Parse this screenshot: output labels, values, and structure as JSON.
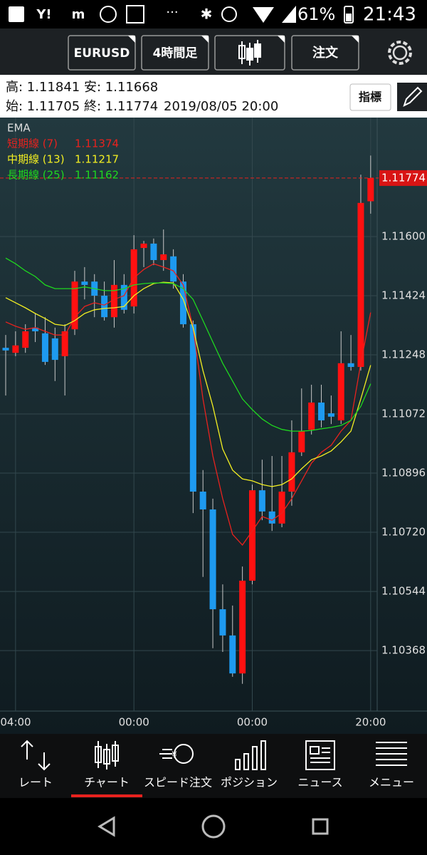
{
  "status_bar": {
    "battery": "61%",
    "time": "21:43"
  },
  "toolbar": {
    "symbol": "EURUSD",
    "timeframe": "4時間足",
    "order": "注文"
  },
  "info": {
    "line1": [
      "高: 1.11841",
      "安: 1.11668"
    ],
    "line2": [
      "始: 1.11705",
      "終: 1.11774",
      "2019/08/05 20:00"
    ],
    "indicator_button": "指標"
  },
  "chart_data": {
    "type": "candlestick",
    "legend_title": "EMA",
    "categories": [
      null,
      "04:00",
      null,
      null,
      null,
      null,
      null,
      null,
      null,
      null,
      null,
      null,
      null,
      "00:00",
      null,
      null,
      null,
      null,
      null,
      null,
      null,
      null,
      null,
      null,
      null,
      "00:00",
      null,
      null,
      null,
      null,
      null,
      null,
      null,
      null,
      null,
      null,
      null,
      "20:00"
    ],
    "open": [
      1.11269,
      1.11254,
      1.11269,
      1.11329,
      1.11312,
      1.11297,
      1.11244,
      1.11324,
      1.11466,
      1.11466,
      1.11424,
      1.1136,
      1.11456,
      1.11392,
      1.11566,
      1.11579,
      1.1153,
      1.11541,
      1.11466,
      1.11339,
      1.10841,
      1.10788,
      1.10491,
      1.10413,
      1.103,
      1.10576,
      1.10845,
      1.10782,
      1.10746,
      1.10841,
      1.10958,
      1.11025,
      1.11106,
      1.11074,
      1.11053,
      1.11223,
      1.11212,
      1.11705
    ],
    "high": [
      1.11307,
      1.11318,
      1.11339,
      1.11371,
      1.1136,
      1.11329,
      1.11339,
      1.11498,
      1.11509,
      1.11488,
      1.11466,
      1.1153,
      1.11488,
      1.11604,
      1.11587,
      1.11594,
      1.11621,
      1.11562,
      1.11488,
      1.1135,
      1.10905,
      1.1082,
      1.10565,
      1.10502,
      1.10618,
      1.10862,
      1.10936,
      1.10947,
      1.10947,
      1.11053,
      1.11148,
      1.11159,
      1.11159,
      1.11127,
      1.11318,
      1.11307,
      1.11784,
      1.11841
    ],
    "low": [
      1.11127,
      1.11244,
      1.11254,
      1.11286,
      1.11218,
      1.1117,
      1.11127,
      1.11307,
      1.11413,
      1.1136,
      1.1135,
      1.11329,
      1.11371,
      1.11371,
      1.11509,
      1.11515,
      1.11498,
      1.11445,
      1.11329,
      1.10777,
      1.10587,
      1.10375,
      1.10364,
      1.1029,
      1.10269,
      1.10565,
      1.10756,
      1.10724,
      1.10735,
      1.10799,
      1.10947,
      1.11011,
      1.11032,
      1.11042,
      1.11042,
      1.11201,
      1.11201,
      1.11668
    ],
    "close": [
      1.11261,
      1.11276,
      1.11318,
      1.11318,
      1.11227,
      1.11233,
      1.11318,
      1.11466,
      1.11456,
      1.11424,
      1.1136,
      1.11456,
      1.11382,
      1.11562,
      1.11579,
      1.1153,
      1.11547,
      1.11466,
      1.11339,
      1.10841,
      1.10788,
      1.10491,
      1.10413,
      1.103,
      1.10576,
      1.10845,
      1.10782,
      1.10746,
      1.10841,
      1.10958,
      1.11021,
      1.11106,
      1.11053,
      1.11064,
      1.11223,
      1.11212,
      1.117,
      1.11774
    ],
    "up_color": "#ff1111",
    "down_color": "#1e9af0",
    "series": [
      {
        "name": "短期線 (7)",
        "color": "#e8221e",
        "values": [
          1.11346,
          1.11333,
          1.11324,
          1.11329,
          1.11318,
          1.11307,
          1.11307,
          1.1136,
          1.11392,
          1.11403,
          1.11396,
          1.11413,
          1.11424,
          1.11477,
          1.11502,
          1.11519,
          1.11509,
          1.11498,
          1.11456,
          1.11329,
          1.11117,
          1.10947,
          1.1082,
          1.10714,
          1.10682,
          1.10724,
          1.10767,
          1.10756,
          1.10777,
          1.1082,
          1.10873,
          1.10926,
          1.10958,
          1.10979,
          1.11021,
          1.11053,
          1.11223,
          1.11374
        ]
      },
      {
        "name": "中期線 (13)",
        "color": "#f2ee22",
        "values": [
          1.11418,
          1.11403,
          1.11388,
          1.11371,
          1.11356,
          1.11339,
          1.11335,
          1.1135,
          1.11371,
          1.11382,
          1.11386,
          1.11388,
          1.11392,
          1.11424,
          1.11445,
          1.1146,
          1.11464,
          1.11462,
          1.11413,
          1.11329,
          1.11201,
          1.11095,
          1.10968,
          1.10905,
          1.10879,
          1.10873,
          1.10862,
          1.10856,
          1.10862,
          1.10879,
          1.10909,
          1.10936,
          1.10947,
          1.10962,
          1.10989,
          1.11021,
          1.11117,
          1.11217
        ]
      },
      {
        "name": "長期線 (25)",
        "color": "#1fd81f",
        "values": [
          1.11536,
          1.11519,
          1.11498,
          1.11481,
          1.11456,
          1.11445,
          1.11445,
          1.11445,
          1.1145,
          1.11445,
          1.11439,
          1.11439,
          1.11445,
          1.11456,
          1.1146,
          1.11462,
          1.11462,
          1.1146,
          1.11445,
          1.11413,
          1.1135,
          1.11286,
          1.11223,
          1.1117,
          1.11117,
          1.11085,
          1.11057,
          1.11038,
          1.11026,
          1.11021,
          1.11021,
          1.11023,
          1.11028,
          1.11032,
          1.11038,
          1.11053,
          1.11095,
          1.11162
        ]
      }
    ],
    "ylim": [
      1.10188,
      1.11954
    ],
    "yticks": [
      {
        "value": 1.116,
        "label": "1.11600"
      },
      1.11424,
      1.11248,
      1.11072,
      1.10896,
      {
        "value": 1.1072,
        "label": "1.10720"
      },
      1.10544,
      1.10368
    ],
    "grid": true
  },
  "nav": [
    "レート",
    "チャート",
    "スピード注文",
    "ポジション",
    "ニュース",
    "メニュー"
  ]
}
